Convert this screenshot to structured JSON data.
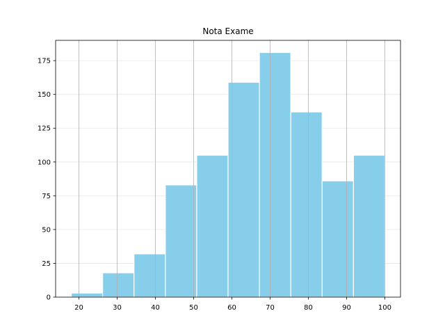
{
  "chart_data": {
    "type": "bar",
    "title": "Nota Exame",
    "xlabel": "",
    "ylabel": "",
    "bins": [
      {
        "start": 18.0,
        "end": 26.2,
        "count": 3
      },
      {
        "start": 26.2,
        "end": 34.4,
        "count": 18
      },
      {
        "start": 34.4,
        "end": 42.6,
        "count": 32
      },
      {
        "start": 42.6,
        "end": 50.8,
        "count": 83
      },
      {
        "start": 50.8,
        "end": 59.0,
        "count": 105
      },
      {
        "start": 59.0,
        "end": 67.2,
        "count": 159
      },
      {
        "start": 67.2,
        "end": 75.4,
        "count": 181
      },
      {
        "start": 75.4,
        "end": 83.6,
        "count": 137
      },
      {
        "start": 83.6,
        "end": 91.8,
        "count": 86
      },
      {
        "start": 91.8,
        "end": 100.0,
        "count": 105
      }
    ],
    "xticks": [
      20,
      30,
      40,
      50,
      60,
      70,
      80,
      90,
      100
    ],
    "yticks": [
      0,
      25,
      50,
      75,
      100,
      125,
      150,
      175
    ],
    "xlim": [
      13.9,
      104.1
    ],
    "ylim": [
      0,
      190
    ],
    "grid": true,
    "bar_color": "#87ceeb",
    "bar_edge_color": "#ffffff",
    "grid_color": "#b0b0b0"
  }
}
